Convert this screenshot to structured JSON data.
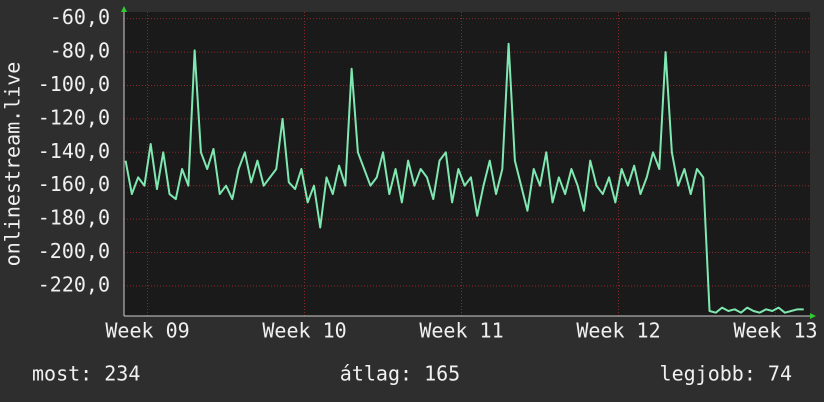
{
  "chart_data": {
    "type": "line",
    "y_label": "onlinestream.live",
    "x": [
      8.86,
      8.9,
      8.94,
      8.98,
      9.02,
      9.06,
      9.1,
      9.14,
      9.18,
      9.22,
      9.26,
      9.3,
      9.34,
      9.38,
      9.42,
      9.46,
      9.5,
      9.54,
      9.58,
      9.62,
      9.66,
      9.7,
      9.74,
      9.78,
      9.82,
      9.86,
      9.9,
      9.94,
      9.98,
      10.02,
      10.06,
      10.1,
      10.14,
      10.18,
      10.22,
      10.26,
      10.3,
      10.34,
      10.38,
      10.42,
      10.46,
      10.5,
      10.54,
      10.58,
      10.62,
      10.66,
      10.7,
      10.74,
      10.78,
      10.82,
      10.86,
      10.9,
      10.94,
      10.98,
      11.02,
      11.06,
      11.1,
      11.14,
      11.18,
      11.22,
      11.26,
      11.3,
      11.34,
      11.38,
      11.42,
      11.46,
      11.5,
      11.54,
      11.58,
      11.62,
      11.66,
      11.7,
      11.74,
      11.78,
      11.82,
      11.86,
      11.9,
      11.94,
      11.98,
      12.02,
      12.06,
      12.1,
      12.14,
      12.18,
      12.22,
      12.26,
      12.3,
      12.34,
      12.38,
      12.42,
      12.46,
      12.5,
      12.54,
      12.58,
      12.62,
      12.66,
      12.7,
      12.74,
      12.78,
      12.82,
      12.86,
      12.9,
      12.94,
      12.98,
      13.02,
      13.06,
      13.1,
      13.14,
      13.18
    ],
    "series": [
      {
        "color": "#7fe8b0",
        "values": [
          -145,
          -165,
          -155,
          -160,
          -135,
          -162,
          -140,
          -165,
          -168,
          -150,
          -160,
          -79,
          -140,
          -150,
          -138,
          -165,
          -160,
          -168,
          -150,
          -140,
          -158,
          -145,
          -160,
          -155,
          -150,
          -120,
          -158,
          -162,
          -150,
          -170,
          -160,
          -185,
          -155,
          -165,
          -148,
          -160,
          -90,
          -140,
          -150,
          -160,
          -155,
          -140,
          -165,
          -150,
          -170,
          -145,
          -160,
          -150,
          -155,
          -168,
          -145,
          -140,
          -170,
          -150,
          -160,
          -155,
          -178,
          -160,
          -145,
          -165,
          -150,
          -75,
          -145,
          -160,
          -175,
          -150,
          -160,
          -140,
          -170,
          -155,
          -165,
          -150,
          -160,
          -175,
          -145,
          -160,
          -165,
          -155,
          -170,
          -150,
          -160,
          -148,
          -165,
          -155,
          -140,
          -150,
          -80,
          -140,
          -160,
          -150,
          -165,
          -150,
          -155,
          -235,
          -236,
          -233,
          -235,
          -234,
          -236,
          -233,
          -235,
          -236,
          -234,
          -235,
          -233,
          -236,
          -235,
          -234,
          -234
        ]
      }
    ],
    "xlim": [
      8.85,
      13.22
    ],
    "xticks": [
      {
        "value": 9,
        "label": "Week 09"
      },
      {
        "value": 10,
        "label": "Week 10"
      },
      {
        "value": 11,
        "label": "Week 11"
      },
      {
        "value": 12,
        "label": "Week 12"
      },
      {
        "value": 13,
        "label": "Week 13"
      }
    ],
    "ylim": [
      -238,
      -56
    ],
    "yticks": [
      {
        "value": -60,
        "label": "-60,0"
      },
      {
        "value": -80,
        "label": "-80,0"
      },
      {
        "value": -100,
        "label": "-100,0"
      },
      {
        "value": -120,
        "label": "-120,0"
      },
      {
        "value": -140,
        "label": "-140,0"
      },
      {
        "value": -160,
        "label": "-160,0"
      },
      {
        "value": -180,
        "label": "-180,0"
      },
      {
        "value": -200,
        "label": "-200,0"
      },
      {
        "value": -220,
        "label": "-220,0"
      }
    ],
    "grid": true,
    "footer": [
      "most: 234",
      "átlag: 165",
      "legjobb: 74"
    ]
  }
}
